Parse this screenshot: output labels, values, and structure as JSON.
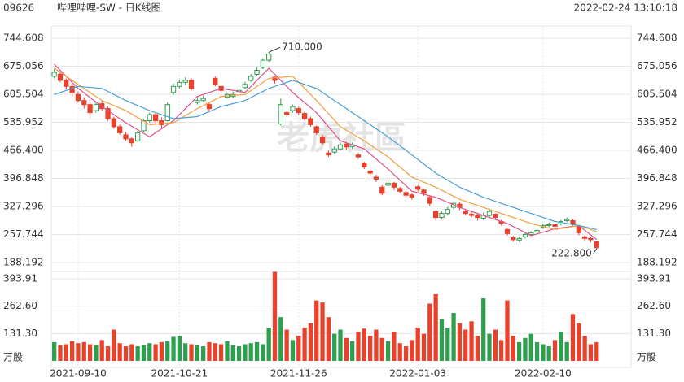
{
  "chart_data": {
    "type": "candlestick",
    "code": "09626",
    "title": "哔哩哔哩-SW - 日K线图",
    "timestamp": "2022-02-24 13:10:18",
    "watermark": "老虎社區",
    "categories": [
      null,
      null,
      null,
      null,
      "2021-09-10",
      null,
      null,
      null,
      null,
      null,
      null,
      null,
      null,
      null,
      null,
      null,
      null,
      null,
      null,
      null,
      null,
      "2021-10-21",
      null,
      null,
      null,
      null,
      null,
      null,
      null,
      null,
      null,
      null,
      null,
      null,
      null,
      null,
      null,
      null,
      null,
      null,
      null,
      "2021-11-26",
      null,
      null,
      null,
      null,
      null,
      null,
      null,
      null,
      null,
      null,
      null,
      null,
      null,
      null,
      null,
      null,
      null,
      null,
      null,
      "2022-01-03",
      null,
      null,
      null,
      null,
      null,
      null,
      null,
      null,
      null,
      null,
      null,
      null,
      null,
      null,
      null,
      null,
      null,
      null,
      null,
      null,
      "2022-02-10",
      null,
      null,
      null,
      null,
      null,
      null,
      null,
      null,
      null
    ],
    "open": [
      650,
      655,
      640,
      625,
      605,
      590,
      580,
      565,
      582,
      570,
      545,
      525,
      505,
      495,
      490,
      515,
      540,
      555,
      540,
      540,
      610,
      625,
      635,
      640,
      585,
      590,
      580,
      645,
      625,
      598,
      600,
      612,
      622,
      640,
      655,
      672,
      690,
      648,
      532,
      560,
      565,
      570,
      558,
      545,
      525,
      500,
      460,
      462,
      470,
      482,
      476,
      455,
      435,
      415,
      400,
      375,
      380,
      385,
      372,
      362,
      356,
      376,
      368,
      350,
      315,
      300,
      310,
      325,
      333,
      315,
      308,
      305,
      298,
      305,
      308,
      290,
      270,
      250,
      244,
      252,
      258,
      264,
      276,
      280,
      282,
      284,
      292,
      292,
      278,
      252,
      248,
      240
    ],
    "high": [
      668,
      660,
      645,
      630,
      612,
      598,
      585,
      588,
      590,
      575,
      550,
      530,
      512,
      500,
      515,
      545,
      560,
      560,
      548,
      585,
      632,
      642,
      648,
      645,
      600,
      602,
      585,
      650,
      630,
      610,
      612,
      620,
      636,
      656,
      672,
      695,
      710,
      650,
      595,
      565,
      580,
      575,
      562,
      550,
      528,
      505,
      466,
      476,
      486,
      488,
      486,
      460,
      438,
      420,
      406,
      380,
      392,
      388,
      376,
      366,
      360,
      380,
      372,
      354,
      318,
      315,
      326,
      340,
      338,
      320,
      314,
      310,
      312,
      322,
      310,
      294,
      274,
      254,
      252,
      262,
      266,
      272,
      284,
      288,
      286,
      294,
      300,
      296,
      282,
      256,
      252,
      242
    ],
    "low": [
      645,
      635,
      618,
      600,
      585,
      570,
      548,
      560,
      565,
      540,
      520,
      505,
      490,
      475,
      486,
      512,
      535,
      532,
      522,
      538,
      605,
      620,
      628,
      615,
      580,
      586,
      562,
      625,
      610,
      595,
      596,
      608,
      618,
      636,
      650,
      668,
      686,
      632,
      528,
      550,
      560,
      553,
      540,
      525,
      505,
      480,
      450,
      458,
      466,
      468,
      470,
      445,
      420,
      402,
      388,
      355,
      372,
      368,
      360,
      350,
      344,
      364,
      354,
      328,
      292,
      296,
      306,
      320,
      318,
      305,
      300,
      292,
      294,
      300,
      294,
      280,
      255,
      240,
      240,
      248,
      254,
      260,
      272,
      276,
      272,
      280,
      288,
      280,
      256,
      242,
      238,
      222.8
    ],
    "close": [
      660,
      640,
      625,
      610,
      590,
      580,
      560,
      580,
      570,
      545,
      525,
      510,
      495,
      485,
      510,
      540,
      555,
      540,
      530,
      580,
      625,
      635,
      640,
      620,
      590,
      595,
      570,
      630,
      615,
      605,
      605,
      615,
      630,
      650,
      665,
      690,
      705,
      640,
      580,
      555,
      575,
      560,
      545,
      530,
      510,
      485,
      455,
      470,
      480,
      475,
      480,
      450,
      425,
      410,
      395,
      360,
      385,
      375,
      365,
      355,
      350,
      370,
      360,
      335,
      300,
      310,
      320,
      335,
      325,
      310,
      305,
      300,
      305,
      315,
      300,
      285,
      260,
      245,
      248,
      258,
      262,
      268,
      280,
      282,
      278,
      290,
      295,
      285,
      262,
      248,
      245,
      225
    ],
    "volume": [
      90,
      75,
      80,
      95,
      85,
      90,
      80,
      75,
      100,
      70,
      150,
      85,
      70,
      80,
      70,
      75,
      85,
      80,
      90,
      95,
      115,
      120,
      85,
      80,
      75,
      70,
      90,
      85,
      80,
      95,
      75,
      70,
      80,
      85,
      90,
      80,
      160,
      427,
      210,
      150,
      100,
      120,
      160,
      180,
      290,
      280,
      210,
      130,
      150,
      110,
      95,
      140,
      155,
      120,
      150,
      110,
      95,
      140,
      85,
      70,
      100,
      160,
      130,
      275,
      320,
      200,
      160,
      230,
      180,
      150,
      190,
      120,
      300,
      130,
      150,
      100,
      290,
      120,
      90,
      110,
      130,
      90,
      80,
      70,
      100,
      140,
      90,
      225,
      180,
      120,
      80,
      90
    ],
    "up_color": "#2e9e4f",
    "down_color": "#e8412c",
    "ma_series": [
      {
        "color": "#e0508a",
        "x": [
          0,
          4,
          8,
          12,
          16,
          20,
          24,
          28,
          32,
          36,
          40,
          44,
          48,
          52,
          56,
          60,
          64,
          68,
          72,
          76,
          80,
          84,
          88,
          91
        ],
        "values": [
          680,
          620,
          575,
          535,
          500,
          540,
          600,
          620,
          610,
          670,
          610,
          560,
          490,
          470,
          420,
          365,
          350,
          325,
          305,
          285,
          255,
          272,
          280,
          245
        ]
      },
      {
        "color": "#f0a040",
        "x": [
          0,
          4,
          8,
          12,
          16,
          20,
          24,
          28,
          32,
          36,
          40,
          44,
          48,
          52,
          56,
          60,
          64,
          68,
          72,
          76,
          80,
          84,
          88,
          91
        ],
        "values": [
          670,
          630,
          590,
          565,
          530,
          535,
          570,
          600,
          605,
          645,
          650,
          590,
          525,
          490,
          450,
          400,
          375,
          345,
          325,
          305,
          285,
          270,
          280,
          265
        ]
      },
      {
        "color": "#4aa0d8",
        "x": [
          0,
          4,
          8,
          12,
          16,
          20,
          24,
          28,
          32,
          36,
          40,
          44,
          48,
          52,
          56,
          60,
          64,
          68,
          72,
          76,
          80,
          84,
          88,
          91
        ],
        "values": [
          605,
          625,
          620,
          590,
          565,
          545,
          550,
          575,
          590,
          620,
          640,
          620,
          580,
          540,
          500,
          455,
          410,
          375,
          350,
          330,
          310,
          290,
          280,
          270
        ]
      }
    ],
    "ylim": [
      188.192,
      744.608
    ],
    "yticks": [
      188.192,
      257.744,
      327.296,
      396.848,
      {
        "value": 466.4,
        "label": "466.400"
      },
      535.952,
      605.504,
      675.056,
      744.608
    ],
    "y2lim": [
      0,
      393.91
    ],
    "y2ticks": [
      {
        "value": 131.3,
        "label": "131.30"
      },
      {
        "value": 262.6,
        "label": "262.60"
      },
      393.91
    ],
    "y2_unit_label": "万股",
    "annotations": [
      {
        "index": 36,
        "value": 710,
        "label": "710.000"
      },
      {
        "index": 91,
        "value": 222.8,
        "label": "222.800"
      }
    ]
  }
}
